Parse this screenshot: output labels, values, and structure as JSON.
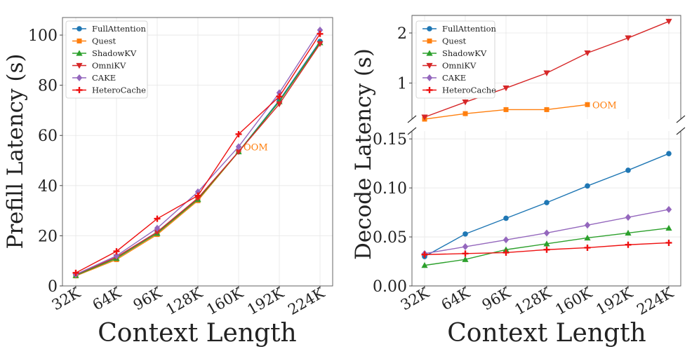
{
  "chart_data": [
    {
      "type": "line",
      "panel": "left",
      "title": "",
      "xlabel": "Context Length",
      "ylabel": "Prefill Latency (s)",
      "categories": [
        "32K",
        "64K",
        "96K",
        "128K",
        "160K",
        "192K",
        "224K"
      ],
      "ylim": [
        0,
        107
      ],
      "yticks": [
        0,
        20,
        40,
        60,
        80,
        100
      ],
      "ytick_labels": [
        "0",
        "20",
        "40",
        "60",
        "80",
        "100"
      ],
      "grid": true,
      "legend_position": "top-left",
      "annotations": [
        {
          "text": "OOM",
          "series": "Quest",
          "category": "160K",
          "color": "#ff7f0e"
        }
      ],
      "series": [
        {
          "name": "FullAttention",
          "color": "#1f77b4",
          "marker": "circle",
          "values": [
            4.3,
            11.5,
            21.5,
            35.0,
            53.5,
            74.0,
            97.5
          ]
        },
        {
          "name": "Quest",
          "color": "#ff7f0e",
          "marker": "square",
          "values": [
            4.0,
            10.5,
            20.5,
            34.0,
            53.5,
            null,
            null
          ]
        },
        {
          "name": "ShadowKV",
          "color": "#2ca02c",
          "marker": "triangle-up",
          "values": [
            4.2,
            11.0,
            21.0,
            34.5,
            53.5,
            73.5,
            97.0
          ]
        },
        {
          "name": "OmniKV",
          "color": "#d62728",
          "marker": "triangle-down",
          "values": [
            4.5,
            11.5,
            21.5,
            35.0,
            53.5,
            72.5,
            96.5
          ]
        },
        {
          "name": "CAKE",
          "color": "#9467bd",
          "marker": "diamond",
          "values": [
            4.6,
            12.0,
            23.0,
            37.5,
            55.5,
            77.0,
            102.0
          ]
        },
        {
          "name": "HeteroCache",
          "color": "#ee1111",
          "marker": "plus",
          "values": [
            5.2,
            13.8,
            26.8,
            36.0,
            60.5,
            75.5,
            100.5
          ]
        }
      ]
    },
    {
      "type": "line",
      "panel": "right",
      "broken_axis": true,
      "title": "",
      "xlabel": "Context Length",
      "ylabel": "Decode Latency (s)",
      "categories": [
        "32K",
        "64K",
        "96K",
        "128K",
        "160K",
        "192K",
        "224K"
      ],
      "ylim_top": [
        0.28,
        2.35
      ],
      "ylim_bottom": [
        0,
        0.158
      ],
      "yticks_top": [
        1,
        2
      ],
      "ytick_labels_top": [
        "1",
        "2"
      ],
      "yticks_bottom": [
        0,
        0.05,
        0.1,
        0.15
      ],
      "ytick_labels_bottom": [
        "0.00",
        "0.05",
        "0.10",
        "0.15"
      ],
      "grid": true,
      "legend_position": "top-left",
      "annotations": [
        {
          "text": "OOM",
          "series": "Quest",
          "category": "160K",
          "color": "#ff7f0e"
        }
      ],
      "series": [
        {
          "name": "FullAttention",
          "color": "#1f77b4",
          "marker": "circle",
          "values": [
            0.03,
            0.053,
            0.069,
            0.085,
            0.102,
            0.118,
            0.135
          ]
        },
        {
          "name": "Quest",
          "color": "#ff7f0e",
          "marker": "square",
          "values": [
            0.28,
            0.39,
            0.47,
            0.47,
            0.57,
            null,
            null
          ]
        },
        {
          "name": "ShadowKV",
          "color": "#2ca02c",
          "marker": "triangle-up",
          "values": [
            0.021,
            0.027,
            0.037,
            0.043,
            0.049,
            0.054,
            0.059
          ]
        },
        {
          "name": "OmniKV",
          "color": "#d62728",
          "marker": "triangle-down",
          "values": [
            0.32,
            0.62,
            0.9,
            1.2,
            1.6,
            1.9,
            2.23
          ]
        },
        {
          "name": "CAKE",
          "color": "#9467bd",
          "marker": "diamond",
          "values": [
            0.033,
            0.04,
            0.047,
            0.054,
            0.062,
            0.07,
            0.078
          ]
        },
        {
          "name": "HeteroCache",
          "color": "#ee1111",
          "marker": "plus",
          "values": [
            0.032,
            0.033,
            0.034,
            0.037,
            0.039,
            0.042,
            0.044
          ]
        }
      ]
    }
  ]
}
